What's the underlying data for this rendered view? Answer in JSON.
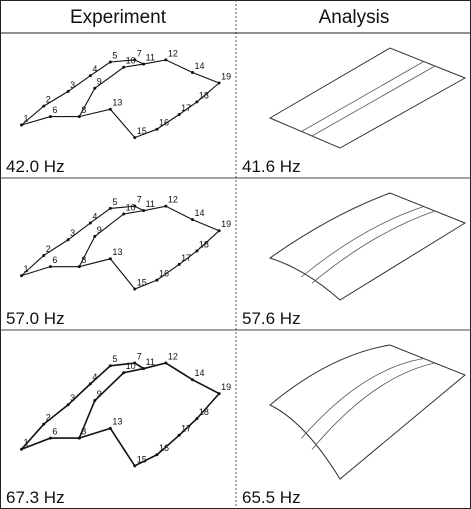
{
  "header": {
    "columns": [
      "Experiment",
      "Analysis"
    ]
  },
  "rows": [
    {
      "experiment": {
        "frequency": "42.0 Hz",
        "nodes": [
          "1",
          "2",
          "6",
          "3",
          "4",
          "5",
          "7",
          "8",
          "9",
          "10",
          "11",
          "12",
          "13",
          "14",
          "15",
          "16",
          "17",
          "18",
          "19"
        ]
      },
      "analysis": {
        "frequency": "41.6 Hz"
      }
    },
    {
      "experiment": {
        "frequency": "57.0 Hz",
        "nodes": [
          "1",
          "2",
          "6",
          "3",
          "4",
          "5",
          "7",
          "8",
          "9",
          "10",
          "11",
          "12",
          "13",
          "14",
          "15",
          "16",
          "17",
          "18",
          "19"
        ]
      },
      "analysis": {
        "frequency": "57.6 Hz"
      }
    },
    {
      "experiment": {
        "frequency": "67.3 Hz",
        "nodes": [
          "1",
          "2",
          "6",
          "3",
          "4",
          "5",
          "7",
          "8",
          "9",
          "10",
          "11",
          "12",
          "13",
          "14",
          "15",
          "16",
          "17",
          "18",
          "19"
        ]
      },
      "analysis": {
        "frequency": "65.5 Hz"
      }
    }
  ]
}
